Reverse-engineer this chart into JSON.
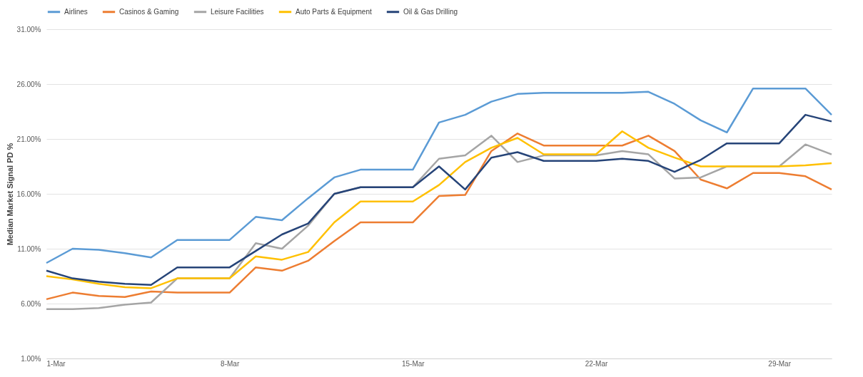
{
  "chart_data": {
    "type": "line",
    "ylabel": "Median Market Signal PD %",
    "x": [
      "--03-01",
      "--03-02",
      "--03-03",
      "--03-04",
      "--03-05",
      "--03-06",
      "--03-07",
      "--03-08",
      "--03-09",
      "--03-10",
      "--03-11",
      "--03-12",
      "--03-13",
      "--03-14",
      "--03-15",
      "--03-16",
      "--03-17",
      "--03-18",
      "--03-19",
      "--03-20",
      "--03-21",
      "--03-22",
      "--03-23",
      "--03-24",
      "--03-25",
      "--03-26",
      "--03-27",
      "--03-28",
      "--03-29",
      "--03-30",
      "--03-31"
    ],
    "series": [
      {
        "name": "Airlines",
        "color": "#5b9bd5",
        "values": [
          9.7,
          11.0,
          10.9,
          10.6,
          10.2,
          11.8,
          11.8,
          11.8,
          13.9,
          13.6,
          15.6,
          17.5,
          18.2,
          18.2,
          18.2,
          22.5,
          23.2,
          24.4,
          25.1,
          25.2,
          25.2,
          25.2,
          25.2,
          25.3,
          24.2,
          22.7,
          21.6,
          25.6,
          25.6,
          25.6,
          23.2
        ]
      },
      {
        "name": "Casinos & Gaming",
        "color": "#ed7d31",
        "values": [
          6.4,
          7.0,
          6.7,
          6.6,
          7.1,
          7.0,
          7.0,
          7.0,
          9.3,
          9.0,
          9.9,
          11.7,
          13.4,
          13.4,
          13.4,
          15.8,
          15.9,
          19.9,
          21.5,
          20.4,
          20.4,
          20.4,
          20.4,
          21.3,
          19.9,
          17.3,
          16.5,
          17.9,
          17.9,
          17.6,
          16.4
        ]
      },
      {
        "name": "Leisure Facilities",
        "color": "#a5a5a5",
        "values": [
          5.5,
          5.5,
          5.6,
          5.9,
          6.1,
          8.3,
          8.3,
          8.3,
          11.5,
          11.0,
          13.1,
          16.0,
          16.6,
          16.6,
          16.6,
          19.2,
          19.5,
          21.3,
          18.9,
          19.5,
          19.5,
          19.5,
          19.9,
          19.6,
          17.4,
          17.5,
          18.5,
          18.5,
          18.5,
          20.5,
          19.6
        ]
      },
      {
        "name": "Auto Parts & Equipment",
        "color": "#ffc000",
        "values": [
          8.5,
          8.2,
          7.8,
          7.5,
          7.4,
          8.3,
          8.3,
          8.3,
          10.3,
          10.0,
          10.7,
          13.4,
          15.3,
          15.3,
          15.3,
          16.8,
          18.9,
          20.2,
          21.1,
          19.6,
          19.6,
          19.6,
          21.7,
          20.2,
          19.3,
          18.5,
          18.5,
          18.5,
          18.5,
          18.6,
          18.8
        ]
      },
      {
        "name": "Oil & Gas Drilling",
        "color": "#264478",
        "values": [
          9.0,
          8.3,
          8.0,
          7.8,
          7.7,
          9.3,
          9.3,
          9.3,
          10.8,
          12.3,
          13.3,
          16.0,
          16.6,
          16.6,
          16.6,
          18.5,
          16.4,
          19.3,
          19.8,
          19.0,
          19.0,
          19.0,
          19.2,
          19.0,
          18.0,
          19.1,
          20.6,
          20.6,
          20.6,
          23.2,
          22.6
        ]
      }
    ],
    "xlim": [
      "--03-01",
      "--03-31"
    ],
    "xticks": [
      {
        "value": "--03-01",
        "label": "1-Mar"
      },
      {
        "value": "--03-08",
        "label": "8-Mar"
      },
      {
        "value": "--03-15",
        "label": "15-Mar"
      },
      {
        "value": "--03-22",
        "label": "22-Mar"
      },
      {
        "value": "--03-29",
        "label": "29-Mar"
      }
    ],
    "ylim": [
      1,
      31
    ],
    "yticks": [
      {
        "value": 1,
        "label": "1.00%"
      },
      {
        "value": 6,
        "label": "6.00%"
      },
      {
        "value": 11,
        "label": "11.00%"
      },
      {
        "value": 16,
        "label": "16.00%"
      },
      {
        "value": 21,
        "label": "21.00%"
      },
      {
        "value": 26,
        "label": "26.00%"
      },
      {
        "value": 31,
        "label": "31.00%"
      }
    ],
    "grid": "y",
    "legend": "top",
    "marker": "none",
    "line_style": "solid"
  }
}
